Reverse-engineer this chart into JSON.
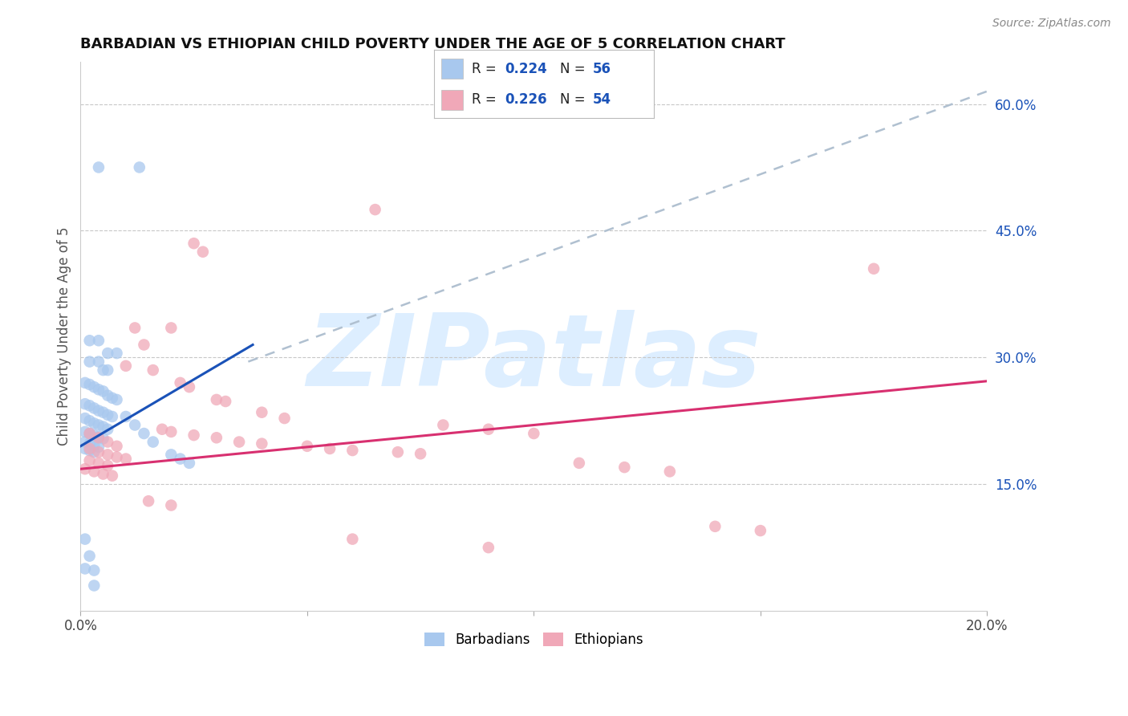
{
  "title": "BARBADIAN VS ETHIOPIAN CHILD POVERTY UNDER THE AGE OF 5 CORRELATION CHART",
  "source": "Source: ZipAtlas.com",
  "ylabel": "Child Poverty Under the Age of 5",
  "xlim": [
    0.0,
    0.2
  ],
  "ylim": [
    0.0,
    0.65
  ],
  "yticks_right": [
    0.15,
    0.3,
    0.45,
    0.6
  ],
  "ytick_right_labels": [
    "15.0%",
    "30.0%",
    "45.0%",
    "60.0%"
  ],
  "grid_color": "#c8c8c8",
  "background_color": "#ffffff",
  "barbadian_color": "#a8c8ee",
  "ethiopian_color": "#f0a8b8",
  "barbadian_line_color": "#1a52b8",
  "ethiopian_line_color": "#d83070",
  "dashed_line_color": "#b0c0d0",
  "legend_label1": "Barbadians",
  "legend_label2": "Ethiopians",
  "watermark_text": "ZIPatlas",
  "watermark_color": "#ddeeff",
  "barb_line_x0": 0.0,
  "barb_line_x1": 0.038,
  "barb_line_y0": 0.195,
  "barb_line_y1": 0.315,
  "eth_line_x0": 0.0,
  "eth_line_x1": 0.2,
  "eth_line_y0": 0.168,
  "eth_line_y1": 0.272,
  "dash_line_x0": 0.037,
  "dash_line_x1": 0.2,
  "dash_line_y0": 0.295,
  "dash_line_y1": 0.615
}
